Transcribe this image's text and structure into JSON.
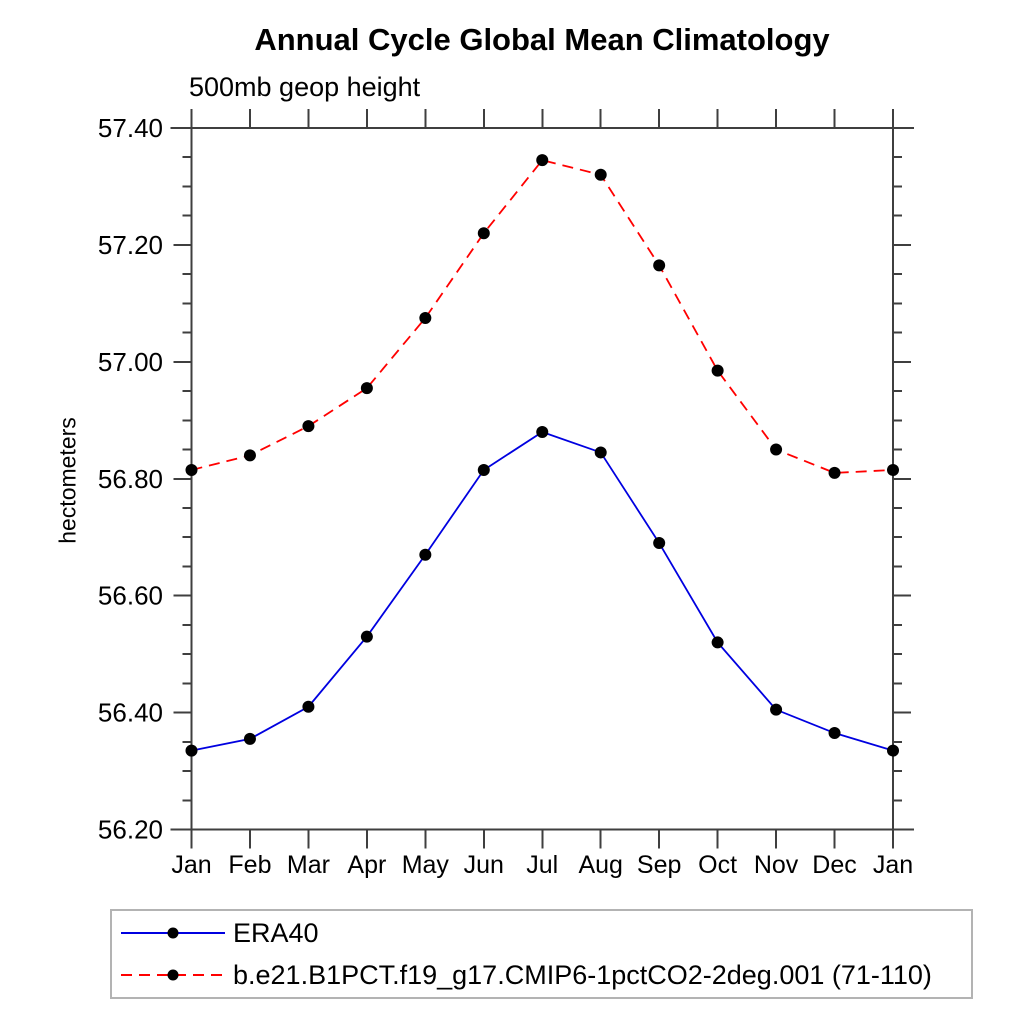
{
  "chart_data": {
    "type": "line",
    "title": "Annual Cycle Global Mean Climatology",
    "subtitle": "500mb geop height",
    "xlabel": "",
    "ylabel": "hectometers",
    "categories": [
      "Jan",
      "Feb",
      "Mar",
      "Apr",
      "May",
      "Jun",
      "Jul",
      "Aug",
      "Sep",
      "Oct",
      "Nov",
      "Dec",
      "Jan"
    ],
    "ylim": [
      56.2,
      57.4
    ],
    "ytick_labels": [
      "56.20",
      "56.40",
      "56.60",
      "56.80",
      "57.00",
      "57.20",
      "57.40"
    ],
    "ytick_step": 0.2,
    "yminor_step": 0.05,
    "grid": false,
    "legend_position": "bottom-left-box",
    "series": [
      {
        "name": "ERA40",
        "line_style": "solid",
        "color": "#0000e0",
        "marker": "filled-black-circle",
        "values": [
          56.335,
          56.355,
          56.41,
          56.53,
          56.67,
          56.815,
          56.88,
          56.845,
          56.69,
          56.52,
          56.405,
          56.365,
          56.335
        ]
      },
      {
        "name": "b.e21.B1PCT.f19_g17.CMIP6-1pctCO2-2deg.001 (71-110)",
        "line_style": "dashed",
        "color": "#ff0000",
        "marker": "filled-black-circle",
        "values": [
          56.815,
          56.84,
          56.89,
          56.955,
          57.075,
          57.22,
          57.345,
          57.32,
          57.165,
          56.985,
          56.85,
          56.81,
          56.815
        ]
      }
    ],
    "colors": {
      "axis": "#3f3f3f",
      "marker": "#000000",
      "text": "#000000",
      "legend_border": "#b3b3b3"
    }
  }
}
